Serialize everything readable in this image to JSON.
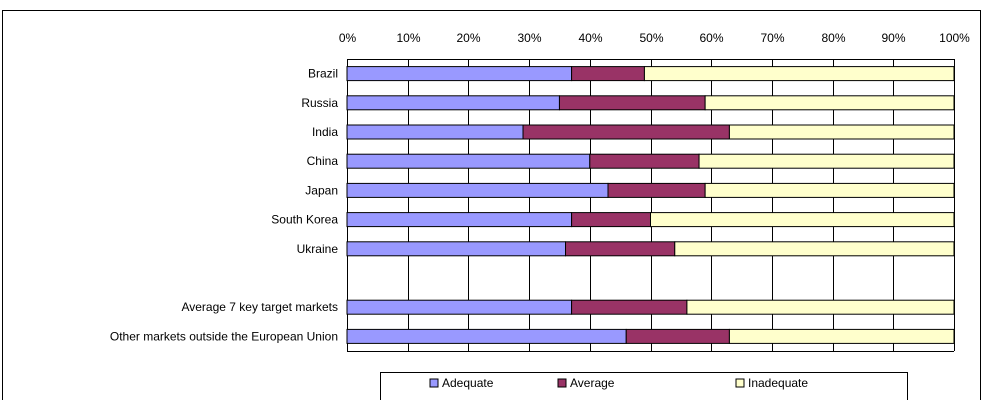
{
  "chart_data": {
    "type": "bar",
    "orientation": "horizontal",
    "stacked": "percent",
    "categories": [
      "Brazil",
      "Russia",
      "India",
      "China",
      "Japan",
      "South Korea",
      "Ukraine",
      "",
      "Average 7 key target markets",
      "Other markets outside the European Union"
    ],
    "series": [
      {
        "name": "Adequate",
        "color": "#9999ff",
        "values": [
          37,
          35,
          29,
          40,
          43,
          37,
          36,
          null,
          37,
          46
        ]
      },
      {
        "name": "Average",
        "color": "#993366",
        "values": [
          12,
          24,
          34,
          18,
          16,
          13,
          18,
          null,
          19,
          17
        ]
      },
      {
        "name": "Inadequate",
        "color": "#ffffcc",
        "values": [
          51,
          41,
          37,
          42,
          41,
          50,
          46,
          null,
          44,
          37
        ]
      }
    ],
    "x_ticks": [
      "0%",
      "10%",
      "20%",
      "30%",
      "40%",
      "50%",
      "60%",
      "70%",
      "80%",
      "90%",
      "100%"
    ],
    "xlim": [
      0,
      100
    ],
    "x_axis_position": "top",
    "grid": true,
    "legend_position": "bottom",
    "title": "",
    "xlabel": "",
    "ylabel": ""
  }
}
